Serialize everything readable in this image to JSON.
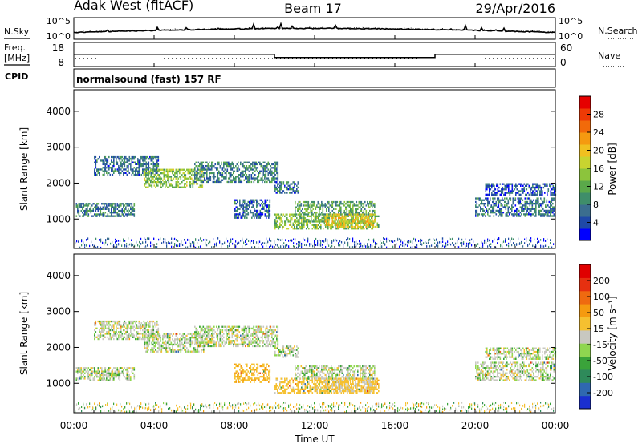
{
  "header": {
    "station": "Adak West (fitACF)",
    "beam": "Beam 17",
    "date": "29/Apr/2016"
  },
  "noise_panel": {
    "left_label": "N.Sky",
    "right_label": "N.Search",
    "left_ticks": [
      "10^5",
      "10^0"
    ],
    "right_ticks": [
      "10^5",
      "10^0"
    ]
  },
  "freq_panel": {
    "left_label_1": "Freq.",
    "left_label_2": "[MHz]",
    "left_ticks": [
      "18",
      "8"
    ],
    "right_label": "Nave",
    "right_ticks": [
      "60",
      "0"
    ]
  },
  "cpid": {
    "label": "CPID",
    "text": "normalsound (fast) 157 RF"
  },
  "power_panel": {
    "ylabel": "Slant Range [km]",
    "yticks": [
      "4000",
      "3000",
      "2000",
      "1000"
    ],
    "colorbar_label": "Power [dB]",
    "colorbar_ticks": [
      "28",
      "24",
      "20",
      "16",
      "12",
      "8",
      "4"
    ],
    "colors": [
      "#0000ff",
      "#1f49a8",
      "#3b6e8f",
      "#3f8e6a",
      "#5aa84a",
      "#8cc43c",
      "#c8d430",
      "#f0c020",
      "#f59a10",
      "#f26a0a",
      "#ee3a05",
      "#e60000"
    ]
  },
  "velocity_panel": {
    "ylabel": "Slant Range [km]",
    "yticks": [
      "4000",
      "3000",
      "2000",
      "1000"
    ],
    "colorbar_label": "Velocity [m s⁻¹]",
    "colorbar_ticks": [
      "200",
      "100",
      "50",
      "15",
      "-15",
      "-50",
      "-100",
      "-200"
    ],
    "colors": [
      "#1a2fd0",
      "#2f68b0",
      "#2e8a5a",
      "#3aa33a",
      "#8fd650",
      "#c8c8c0",
      "#f5c030",
      "#f59a10",
      "#ef6a10",
      "#e63010",
      "#e00000"
    ]
  },
  "xaxis": {
    "label": "Time UT",
    "ticks": [
      "00:00",
      "04:00",
      "08:00",
      "12:00",
      "16:00",
      "20:00",
      "00:00"
    ]
  },
  "chart_data": {
    "type": "heatmap",
    "title": "Adak West (fitACF) Beam 17 29/Apr/2016",
    "xlabel": "Time UT",
    "ylabel": "Slant Range [km]",
    "xlim_hours": [
      0,
      24
    ],
    "ylim_km": [
      180,
      4600
    ],
    "frequency_mhz": [
      {
        "start": 0,
        "end": 10,
        "value": 12.6
      },
      {
        "start": 10,
        "end": 18,
        "value": 10.6
      },
      {
        "start": 18,
        "end": 24,
        "value": 12.6
      }
    ],
    "power_db_range": [
      0,
      32
    ],
    "velocity_range": [
      -250,
      250
    ],
    "echo_regions": [
      {
        "t0": 0.1,
        "t1": 3.0,
        "r0": 1100,
        "r1": 1450,
        "power": 8,
        "velocity": 0
      },
      {
        "t0": 1.0,
        "t1": 4.2,
        "r0": 2250,
        "r1": 2750,
        "power": 7,
        "velocity": 0
      },
      {
        "t0": 3.5,
        "t1": 6.5,
        "r0": 1900,
        "r1": 2400,
        "power": 14,
        "velocity": 0
      },
      {
        "t0": 6.0,
        "t1": 10.2,
        "r0": 2050,
        "r1": 2600,
        "power": 8,
        "velocity": 0
      },
      {
        "t0": 8.0,
        "t1": 9.8,
        "r0": 1050,
        "r1": 1550,
        "power": 6,
        "velocity": -40
      },
      {
        "t0": 10.0,
        "t1": 11.2,
        "r0": 1750,
        "r1": 2050,
        "power": 7,
        "velocity": 0
      },
      {
        "t0": 10.0,
        "t1": 15.2,
        "r0": 750,
        "r1": 1150,
        "power": 14,
        "velocity": -30
      },
      {
        "t0": 11.0,
        "t1": 15.0,
        "r0": 1150,
        "r1": 1500,
        "power": 11,
        "velocity": 0
      },
      {
        "t0": 12.5,
        "t1": 15.0,
        "r0": 800,
        "r1": 1150,
        "power": 19,
        "velocity": -20
      },
      {
        "t0": 20.0,
        "t1": 24.0,
        "r0": 1100,
        "r1": 1600,
        "power": 7,
        "velocity": 0
      },
      {
        "t0": 20.5,
        "t1": 24.0,
        "r0": 1700,
        "r1": 2000,
        "power": 5,
        "velocity": 0
      }
    ]
  }
}
